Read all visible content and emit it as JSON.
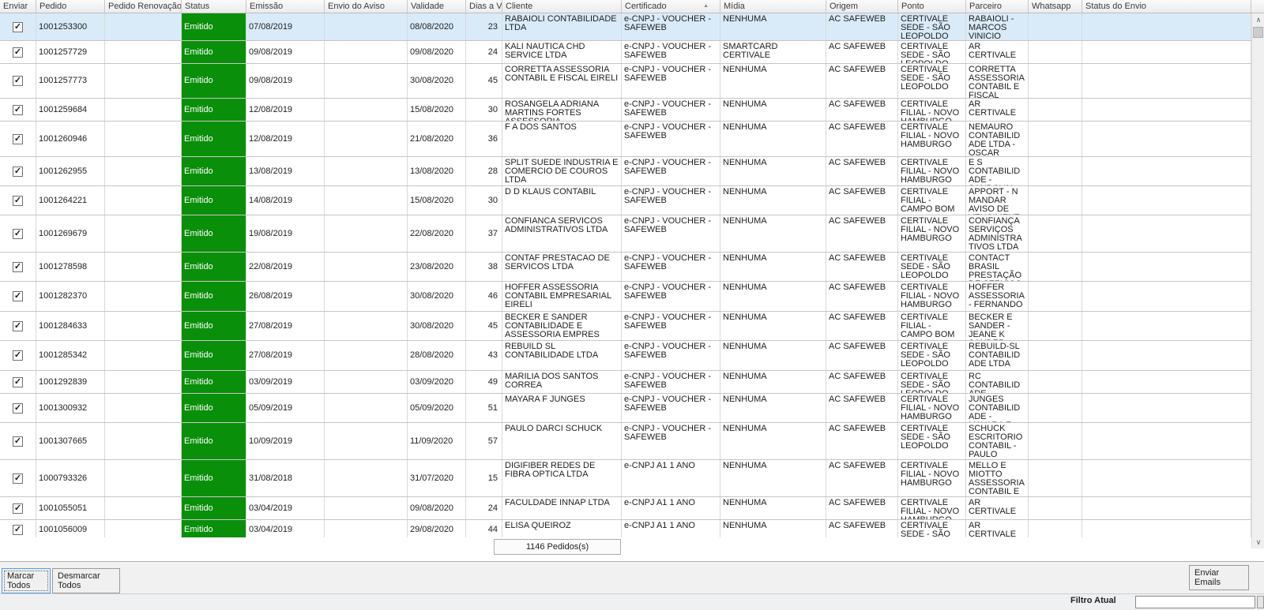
{
  "colors": {
    "status_emitido_bg": "#0a8f0a",
    "status_emitido_text": "#ffffff",
    "selected_row_bg": "#d9ebf9",
    "header_bg": "#ededed",
    "panel_bg": "#f1f1f1"
  },
  "icons": {
    "sort_asc": "▲",
    "check": "✓",
    "scroll_up": "∧",
    "scroll_down": "∨"
  },
  "grid": {
    "sort_column": "certificado",
    "sort_direction": "ascending",
    "summary": "1146 Pedidos(s)",
    "columns": [
      {
        "key": "enviar",
        "label": "Enviar"
      },
      {
        "key": "pedido",
        "label": "Pedido"
      },
      {
        "key": "pedido_renovacao",
        "label": "Pedido Renovação"
      },
      {
        "key": "status",
        "label": "Status"
      },
      {
        "key": "emissao",
        "label": "Emissão"
      },
      {
        "key": "envio_aviso",
        "label": "Envio do Aviso"
      },
      {
        "key": "validade",
        "label": "Validade"
      },
      {
        "key": "dias",
        "label": "Dias a V..."
      },
      {
        "key": "cliente",
        "label": "Cliente"
      },
      {
        "key": "certificado",
        "label": "Certificado"
      },
      {
        "key": "midia",
        "label": "Mídia"
      },
      {
        "key": "origem",
        "label": "Origem"
      },
      {
        "key": "ponto",
        "label": "Ponto"
      },
      {
        "key": "parceiro",
        "label": "Parceiro"
      },
      {
        "key": "whatsapp",
        "label": "Whatsapp"
      },
      {
        "key": "status_envio",
        "label": "Status do Envio"
      }
    ],
    "rows": [
      {
        "enviar": true,
        "selected": true,
        "pedido": "1001253300",
        "pedido_renovacao": "",
        "status": "Emitido",
        "emissao": "07/08/2019",
        "envio_aviso": "",
        "validade": "08/08/2020",
        "dias": "23",
        "cliente": "RABAIOLI CONTABILIDADE LTDA",
        "certificado": "e-CNPJ - VOUCHER - SAFEWEB",
        "midia": "NENHUMA",
        "origem": "AC SAFEWEB",
        "ponto": "CERTIVALE SEDE - SÃO LEOPOLDO",
        "parceiro": "RABAIOLI - MARCOS VINICIO RABAIOLI",
        "whatsapp": "",
        "status_envio": ""
      },
      {
        "enviar": true,
        "pedido": "1001257729",
        "pedido_renovacao": "",
        "status": "Emitido",
        "emissao": "09/08/2019",
        "envio_aviso": "",
        "validade": "09/08/2020",
        "dias": "24",
        "cliente": "KALI NAUTICA CHD SERVICE LTDA",
        "certificado": "e-CNPJ - VOUCHER - SAFEWEB",
        "midia": "SMARTCARD CERTIVALE",
        "origem": "AC SAFEWEB",
        "ponto": "CERTIVALE SEDE - SÃO LEOPOLDO",
        "parceiro": "AR CERTIVALE",
        "whatsapp": "",
        "status_envio": ""
      },
      {
        "enviar": true,
        "pedido": "1001257773",
        "pedido_renovacao": "",
        "status": "Emitido",
        "emissao": "09/08/2019",
        "envio_aviso": "",
        "validade": "30/08/2020",
        "dias": "45",
        "cliente": "CORRETTA ASSESSORIA CONTABIL E FISCAL EIRELI",
        "certificado": "e-CNPJ - VOUCHER - SAFEWEB",
        "midia": "NENHUMA",
        "origem": "AC SAFEWEB",
        "ponto": "CERTIVALE SEDE - SÃO LEOPOLDO",
        "parceiro": "CORRETTA ASSESSORIA CONTABIL E FISCAL EIRELI",
        "whatsapp": "",
        "status_envio": ""
      },
      {
        "enviar": true,
        "pedido": "1001259684",
        "pedido_renovacao": "",
        "status": "Emitido",
        "emissao": "12/08/2019",
        "envio_aviso": "",
        "validade": "15/08/2020",
        "dias": "30",
        "cliente": "ROSANGELA ADRIANA MARTINS FORTES ASSESSORIA",
        "certificado": "e-CNPJ - VOUCHER - SAFEWEB",
        "midia": "NENHUMA",
        "origem": "AC SAFEWEB",
        "ponto": "CERTIVALE FILIAL - NOVO HAMBURGO",
        "parceiro": "AR CERTIVALE",
        "whatsapp": "",
        "status_envio": ""
      },
      {
        "enviar": true,
        "pedido": "1001260946",
        "pedido_renovacao": "",
        "status": "Emitido",
        "emissao": "12/08/2019",
        "envio_aviso": "",
        "validade": "21/08/2020",
        "dias": "36",
        "cliente": "F A DOS SANTOS",
        "certificado": "e-CNPJ - VOUCHER - SAFEWEB",
        "midia": "NENHUMA",
        "origem": "AC SAFEWEB",
        "ponto": "CERTIVALE FILIAL - NOVO HAMBURGO",
        "parceiro": "NEMAURO CONTABILIDADE LTDA - OSCAR WALTER",
        "whatsapp": "",
        "status_envio": ""
      },
      {
        "enviar": true,
        "pedido": "1001262955",
        "pedido_renovacao": "",
        "status": "Emitido",
        "emissao": "13/08/2019",
        "envio_aviso": "",
        "validade": "13/08/2020",
        "dias": "28",
        "cliente": "SPLIT SUEDE INDUSTRIA E COMERCIO DE COUROS LTDA",
        "certificado": "e-CNPJ - VOUCHER - SAFEWEB",
        "midia": "NENHUMA",
        "origem": "AC SAFEWEB",
        "ponto": "CERTIVALE FILIAL - NOVO HAMBURGO",
        "parceiro": "E S CONTABILIDADE - SANDOVAL",
        "whatsapp": "",
        "status_envio": ""
      },
      {
        "enviar": true,
        "pedido": "1001264221",
        "pedido_renovacao": "",
        "status": "Emitido",
        "emissao": "14/08/2019",
        "envio_aviso": "",
        "validade": "15/08/2020",
        "dias": "30",
        "cliente": "D D KLAUS CONTABIL",
        "certificado": "e-CNPJ - VOUCHER - SAFEWEB",
        "midia": "NENHUMA",
        "origem": "AC SAFEWEB",
        "ponto": "CERTIVALE FILIAL - CAMPO BOM",
        "parceiro": "APPORT  - N MANDAR AVISO DE VENCIMENTO",
        "whatsapp": "",
        "status_envio": ""
      },
      {
        "enviar": true,
        "pedido": "1001269679",
        "pedido_renovacao": "",
        "status": "Emitido",
        "emissao": "19/08/2019",
        "envio_aviso": "",
        "validade": "22/08/2020",
        "dias": "37",
        "cliente": "CONFIANCA SERVICOS ADMINISTRATIVOS LTDA",
        "certificado": "e-CNPJ - VOUCHER - SAFEWEB",
        "midia": "NENHUMA",
        "origem": "AC SAFEWEB",
        "ponto": "CERTIVALE FILIAL - NOVO HAMBURGO",
        "parceiro": "CONFIANÇA SERVIÇOS ADMINISTRATIVOS LTDA",
        "whatsapp": "",
        "status_envio": ""
      },
      {
        "enviar": true,
        "pedido": "1001278598",
        "pedido_renovacao": "",
        "status": "Emitido",
        "emissao": "22/08/2019",
        "envio_aviso": "",
        "validade": "23/08/2020",
        "dias": "38",
        "cliente": "CONTAF PRESTACAO DE SERVICOS LTDA",
        "certificado": "e-CNPJ - VOUCHER - SAFEWEB",
        "midia": "NENHUMA",
        "origem": "AC SAFEWEB",
        "ponto": "CERTIVALE SEDE - SÃO LEOPOLDO",
        "parceiro": "CONTACT BRASIL PRESTAÇÃO DE SERVIÇO LTDA",
        "whatsapp": "",
        "status_envio": ""
      },
      {
        "enviar": true,
        "pedido": "1001282370",
        "pedido_renovacao": "",
        "status": "Emitido",
        "emissao": "26/08/2019",
        "envio_aviso": "",
        "validade": "30/08/2020",
        "dias": "46",
        "cliente": "HOFFER ASSESSORIA CONTABIL EMPRESARIAL EIRELI",
        "certificado": "e-CNPJ - VOUCHER - SAFEWEB",
        "midia": "NENHUMA",
        "origem": "AC SAFEWEB",
        "ponto": "CERTIVALE FILIAL - NOVO HAMBURGO",
        "parceiro": "HOFFER ASSESSORIA- FERNANDO",
        "whatsapp": "",
        "status_envio": ""
      },
      {
        "enviar": true,
        "pedido": "1001284633",
        "pedido_renovacao": "",
        "status": "Emitido",
        "emissao": "27/08/2019",
        "envio_aviso": "",
        "validade": "30/08/2020",
        "dias": "45",
        "cliente": "BECKER E SANDER CONTABILIDADE E ASSESSORIA EMPRES",
        "certificado": "e-CNPJ - VOUCHER - SAFEWEB",
        "midia": "NENHUMA",
        "origem": "AC SAFEWEB",
        "ponto": "CERTIVALE FILIAL - CAMPO BOM",
        "parceiro": "BECKER E SANDER - JEANE K SANDER",
        "whatsapp": "",
        "status_envio": ""
      },
      {
        "enviar": true,
        "pedido": "1001285342",
        "pedido_renovacao": "",
        "status": "Emitido",
        "emissao": "27/08/2019",
        "envio_aviso": "",
        "validade": "28/08/2020",
        "dias": "43",
        "cliente": "REBUILD SL CONTABILIDADE LTDA",
        "certificado": "e-CNPJ - VOUCHER - SAFEWEB",
        "midia": "NENHUMA",
        "origem": "AC SAFEWEB",
        "ponto": "CERTIVALE SEDE - SÃO LEOPOLDO",
        "parceiro": "REBUILD-SL CONTABILIDADE LTDA",
        "whatsapp": "",
        "status_envio": ""
      },
      {
        "enviar": true,
        "pedido": "1001292839",
        "pedido_renovacao": "",
        "status": "Emitido",
        "emissao": "03/09/2019",
        "envio_aviso": "",
        "validade": "03/09/2020",
        "dias": "49",
        "cliente": "MARILIA DOS SANTOS CORREA",
        "certificado": "e-CNPJ - VOUCHER - SAFEWEB",
        "midia": "NENHUMA",
        "origem": "AC SAFEWEB",
        "ponto": "CERTIVALE SEDE - SÃO LEOPOLDO",
        "parceiro": "RC CONTABILIDADE",
        "whatsapp": "",
        "status_envio": ""
      },
      {
        "enviar": true,
        "pedido": "1001300932",
        "pedido_renovacao": "",
        "status": "Emitido",
        "emissao": "05/09/2019",
        "envio_aviso": "",
        "validade": "05/09/2020",
        "dias": "51",
        "cliente": "MAYARA F JUNGES",
        "certificado": "e-CNPJ - VOUCHER - SAFEWEB",
        "midia": "NENHUMA",
        "origem": "AC SAFEWEB",
        "ponto": "CERTIVALE FILIAL - NOVO HAMBURGO",
        "parceiro": "JUNGES CONTABILIDADE - MAYARA F JUNGES",
        "whatsapp": "",
        "status_envio": ""
      },
      {
        "enviar": true,
        "pedido": "1001307665",
        "pedido_renovacao": "",
        "status": "Emitido",
        "emissao": "10/09/2019",
        "envio_aviso": "",
        "validade": "11/09/2020",
        "dias": "57",
        "cliente": "PAULO DARCI SCHUCK",
        "certificado": "e-CNPJ - VOUCHER - SAFEWEB",
        "midia": "NENHUMA",
        "origem": "AC SAFEWEB",
        "ponto": "CERTIVALE SEDE - SÃO LEOPOLDO",
        "parceiro": "SCHUCK ESCRITORIO CONTABIL - PAULO DARCI SCHUCK",
        "whatsapp": "",
        "status_envio": ""
      },
      {
        "enviar": true,
        "pedido": "1000793326",
        "pedido_renovacao": "",
        "status": "Emitido",
        "emissao": "31/08/2018",
        "envio_aviso": "",
        "validade": "31/07/2020",
        "dias": "15",
        "cliente": "DIGIFIBER REDES DE FIBRA OPTICA LTDA",
        "certificado": "e-CNPJ A1 1 ANO",
        "midia": "NENHUMA",
        "origem": "AC SAFEWEB",
        "ponto": "CERTIVALE FILIAL - NOVO HAMBURGO",
        "parceiro": "MELLO E MIOTTO ASSESSORIA CONTABIL E DE GESTAO",
        "whatsapp": "",
        "status_envio": ""
      },
      {
        "enviar": true,
        "pedido": "1001055051",
        "pedido_renovacao": "",
        "status": "Emitido",
        "emissao": "03/04/2019",
        "envio_aviso": "",
        "validade": "09/08/2020",
        "dias": "24",
        "cliente": "FACULDADE INNAP LTDA",
        "certificado": "e-CNPJ A1 1 ANO",
        "midia": "NENHUMA",
        "origem": "AC SAFEWEB",
        "ponto": "CERTIVALE FILIAL - NOVO HAMBURGO",
        "parceiro": "AR CERTIVALE",
        "whatsapp": "",
        "status_envio": ""
      },
      {
        "enviar": true,
        "pedido": "1001056009",
        "pedido_renovacao": "",
        "status": "Emitido",
        "emissao": "03/04/2019",
        "envio_aviso": "",
        "validade": "29/08/2020",
        "dias": "44",
        "cliente": "ELISA QUEIROZ",
        "certificado": "e-CNPJ A1 1 ANO",
        "midia": "NENHUMA",
        "origem": "AC SAFEWEB",
        "ponto": "CERTIVALE SEDE - SÃO LEOPOLDO",
        "parceiro": "AR CERTIVALE",
        "whatsapp": "",
        "status_envio": ""
      }
    ]
  },
  "footer": {
    "marcar_todos": "Marcar Todos",
    "desmarcar_todos": "Desmarcar Todos",
    "enviar_emails": "Enviar Emails",
    "filtro_label": "Filtro Atual"
  }
}
